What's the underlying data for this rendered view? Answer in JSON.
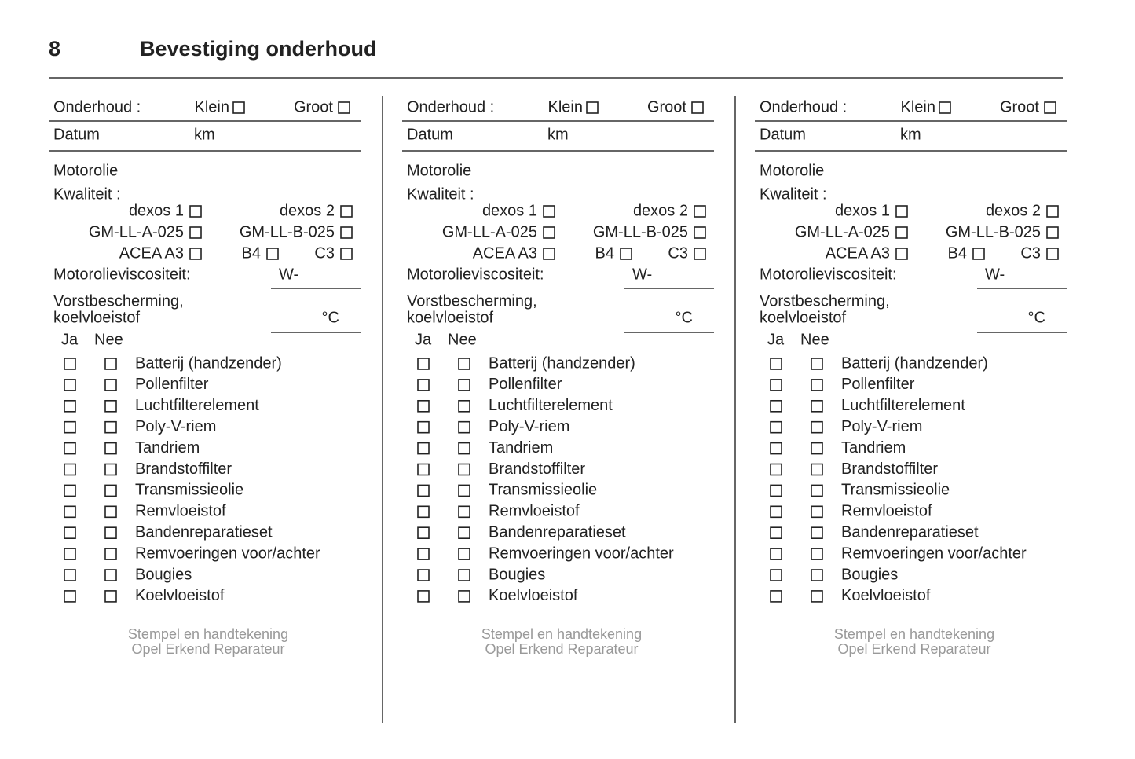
{
  "header": {
    "page_number": "8",
    "title": "Bevestiging onderhoud"
  },
  "columns": [
    {
      "onderhoud": "Onderhoud :",
      "klein": "Klein",
      "groot": "Groot",
      "datum": "Datum",
      "km": "km",
      "motorolie": "Motorolie",
      "kwaliteit": "Kwaliteit :",
      "oils": [
        "dexos 1",
        "dexos 2",
        "GM-LL-A-025",
        "GM-LL-B-025",
        "ACEA A3",
        "B4",
        "C3"
      ],
      "viscosity_label": "Motorolieviscositeit:",
      "viscosity_prefix": "W-",
      "frost_label": [
        "Vorstbescherming,",
        "koelvloeistof"
      ],
      "frost_unit": "°C",
      "ja": "Ja",
      "nee": "Nee",
      "items": [
        "Batterij (handzender)",
        "Pollenfilter",
        "Luchtfilterelement",
        "Poly-V-riem",
        "Tandriem",
        "Brandstoffilter",
        "Transmissieolie",
        "Remvloeistof",
        "Bandenreparatieset",
        "Remvoeringen voor/achter",
        "Bougies",
        "Koelvloeistof"
      ],
      "stamp": [
        "Stempel en handtekening",
        "Opel Erkend Reparateur"
      ]
    },
    {
      "onderhoud": "Onderhoud :",
      "klein": "Klein",
      "groot": "Groot",
      "datum": "Datum",
      "km": "km",
      "motorolie": "Motorolie",
      "kwaliteit": "Kwaliteit :",
      "oils": [
        "dexos 1",
        "dexos 2",
        "GM-LL-A-025",
        "GM-LL-B-025",
        "ACEA A3",
        "B4",
        "C3"
      ],
      "viscosity_label": "Motorolieviscositeit:",
      "viscosity_prefix": "W-",
      "frost_label": [
        "Vorstbescherming,",
        "koelvloeistof"
      ],
      "frost_unit": "°C",
      "ja": "Ja",
      "nee": "Nee",
      "items": [
        "Batterij (handzender)",
        "Pollenfilter",
        "Luchtfilterelement",
        "Poly-V-riem",
        "Tandriem",
        "Brandstoffilter",
        "Transmissieolie",
        "Remvloeistof",
        "Bandenreparatieset",
        "Remvoeringen voor/achter",
        "Bougies",
        "Koelvloeistof"
      ],
      "stamp": [
        "Stempel en handtekening",
        "Opel Erkend Reparateur"
      ]
    },
    {
      "onderhoud": "Onderhoud :",
      "klein": "Klein",
      "groot": "Groot",
      "datum": "Datum",
      "km": "km",
      "motorolie": "Motorolie",
      "kwaliteit": "Kwaliteit :",
      "oils": [
        "dexos 1",
        "dexos 2",
        "GM-LL-A-025",
        "GM-LL-B-025",
        "ACEA A3",
        "B4",
        "C3"
      ],
      "viscosity_label": "Motorolieviscositeit:",
      "viscosity_prefix": "W-",
      "frost_label": [
        "Vorstbescherming,",
        "koelvloeistof"
      ],
      "frost_unit": "°C",
      "ja": "Ja",
      "nee": "Nee",
      "items": [
        "Batterij (handzender)",
        "Pollenfilter",
        "Luchtfilterelement",
        "Poly-V-riem",
        "Tandriem",
        "Brandstoffilter",
        "Transmissieolie",
        "Remvloeistof",
        "Bandenreparatieset",
        "Remvoeringen voor/achter",
        "Bougies",
        "Koelvloeistof"
      ],
      "stamp": [
        "Stempel en handtekening",
        "Opel Erkend Reparateur"
      ]
    }
  ]
}
